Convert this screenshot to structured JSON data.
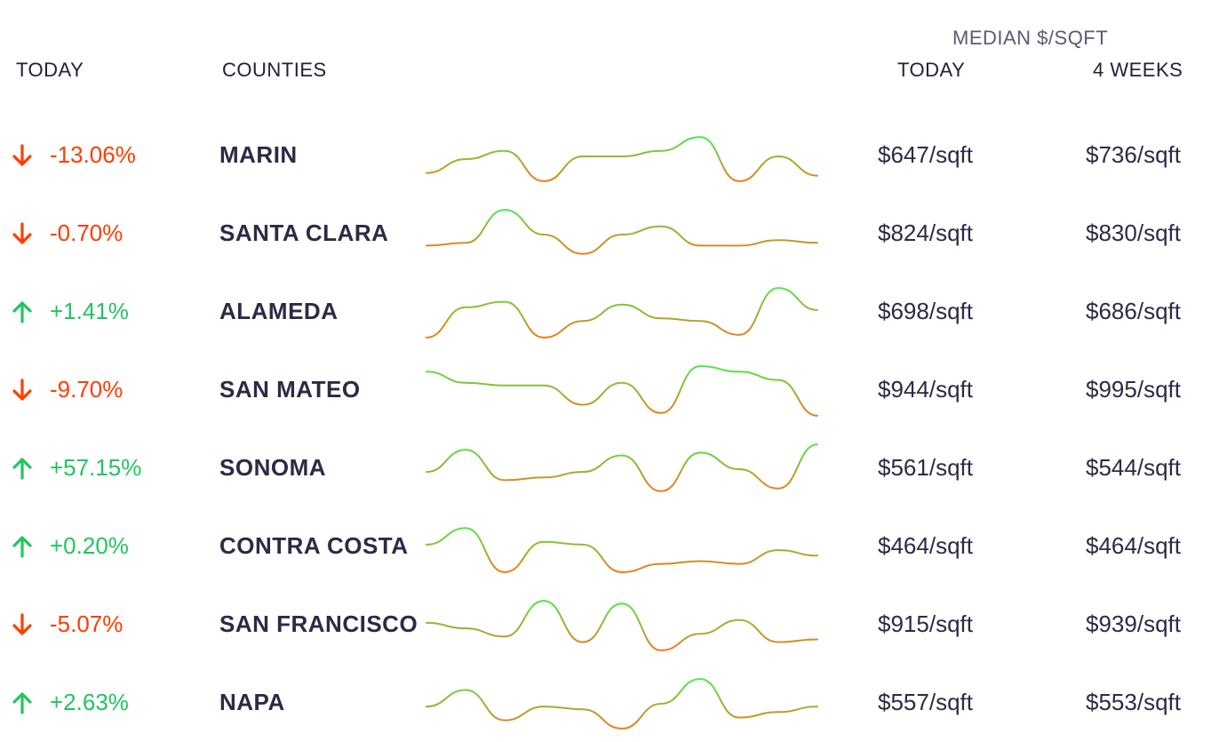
{
  "header": {
    "today": "TODAY",
    "counties": "COUNTIES",
    "group_label": "MEDIAN $/SQFT",
    "price_today": "TODAY",
    "price_4weeks": "4 WEEKS"
  },
  "colors": {
    "up": "#22c55e",
    "down": "#ff3d00",
    "spark_high": "#4ee84a",
    "spark_low": "#f07a1a",
    "text": "#2c2a45"
  },
  "chart_data": {
    "type": "table",
    "columns": [
      "TODAY",
      "COUNTIES",
      "trend",
      "MEDIAN $/SQFT TODAY",
      "MEDIAN $/SQFT 4 WEEKS"
    ],
    "rows": [
      {
        "direction": "down",
        "change": "-13.06%",
        "county": "MARIN",
        "price_today": "$647/sqft",
        "price_4weeks": "$736/sqft",
        "trend": [
          0.2,
          0.45,
          0.6,
          0.05,
          0.5,
          0.5,
          0.6,
          0.85,
          0.05,
          0.5,
          0.15
        ]
      },
      {
        "direction": "down",
        "change": "-0.70%",
        "county": "SANTA CLARA",
        "price_today": "$824/sqft",
        "price_4weeks": "$830/sqft",
        "trend": [
          0.3,
          0.35,
          0.95,
          0.5,
          0.15,
          0.5,
          0.65,
          0.3,
          0.3,
          0.4,
          0.35
        ]
      },
      {
        "direction": "up",
        "change": "+1.41%",
        "county": "ALAMEDA",
        "price_today": "$698/sqft",
        "price_4weeks": "$686/sqft",
        "trend": [
          0.05,
          0.6,
          0.7,
          0.05,
          0.35,
          0.65,
          0.4,
          0.35,
          0.1,
          0.95,
          0.55
        ]
      },
      {
        "direction": "down",
        "change": "-9.70%",
        "county": "SAN MATEO",
        "price_today": "$944/sqft",
        "price_4weeks": "$995/sqft",
        "trend": [
          0.85,
          0.65,
          0.6,
          0.6,
          0.25,
          0.65,
          0.1,
          0.95,
          0.85,
          0.7,
          0.05
        ]
      },
      {
        "direction": "up",
        "change": "+57.15%",
        "county": "SONOMA",
        "price_today": "$561/sqft",
        "price_4weeks": "$544/sqft",
        "trend": [
          0.45,
          0.85,
          0.3,
          0.35,
          0.45,
          0.75,
          0.1,
          0.8,
          0.5,
          0.15,
          0.95
        ]
      },
      {
        "direction": "up",
        "change": "+0.20%",
        "county": "CONTRA COSTA",
        "price_today": "$464/sqft",
        "price_4weeks": "$464/sqft",
        "trend": [
          0.55,
          0.85,
          0.05,
          0.6,
          0.55,
          0.05,
          0.2,
          0.25,
          0.2,
          0.45,
          0.35
        ]
      },
      {
        "direction": "down",
        "change": "-5.07%",
        "county": "SAN FRANCISCO",
        "price_today": "$915/sqft",
        "price_4weeks": "$939/sqft",
        "trend": [
          0.55,
          0.45,
          0.3,
          0.95,
          0.2,
          0.9,
          0.05,
          0.35,
          0.6,
          0.2,
          0.25
        ]
      },
      {
        "direction": "up",
        "change": "+2.63%",
        "county": "NAPA",
        "price_today": "$557/sqft",
        "price_4weeks": "$553/sqft",
        "trend": [
          0.45,
          0.75,
          0.2,
          0.45,
          0.4,
          0.05,
          0.5,
          0.95,
          0.25,
          0.35,
          0.45
        ]
      }
    ]
  }
}
